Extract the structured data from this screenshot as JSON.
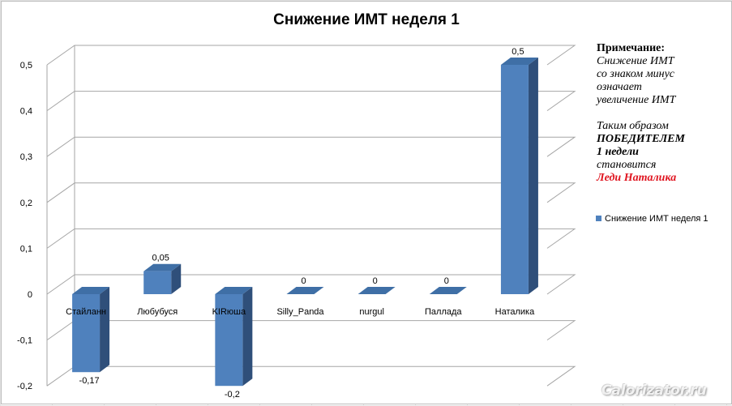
{
  "chart_data": {
    "type": "bar",
    "title": "Снижение ИМТ неделя 1",
    "categories": [
      "Стайланн",
      "Любубуся",
      "KIRюша",
      "Silly_Panda",
      "nurgul",
      "Паллада",
      "Наталика"
    ],
    "series": [
      {
        "name": "Снижение ИМТ неделя 1",
        "values": [
          -0.17,
          0.05,
          -0.2,
          0,
          0,
          0,
          0.5
        ],
        "labels": [
          "-0,17",
          "0,05",
          "-0,2",
          "0",
          "0",
          "0",
          "0,5"
        ]
      }
    ],
    "y_ticks": [
      "-0,2",
      "-0,1",
      "0",
      "0,1",
      "0,2",
      "0,3",
      "0,4",
      "0,5"
    ],
    "ylim": [
      -0.2,
      0.5
    ],
    "grid": true,
    "legend_position": "right",
    "style": "3d-column",
    "colors": {
      "bar_front": "#4f81bd",
      "bar_top": "#3f6fa6",
      "bar_side": "#2f4f7a",
      "grid": "#a6a6a6"
    }
  },
  "note": {
    "heading": "Примечание:",
    "line1": "Снижение ИМТ",
    "line2": "со знаком минус",
    "line3": "означает",
    "line4": "увеличение ИМТ",
    "line5": "Таким образом",
    "line6": "ПОБЕДИТЕЛЕМ",
    "line7": "1 недели",
    "line8": "становится",
    "winner": "Леди Наталика",
    "winner_color": "#e0141f"
  },
  "watermark": "Calorizator.ru"
}
